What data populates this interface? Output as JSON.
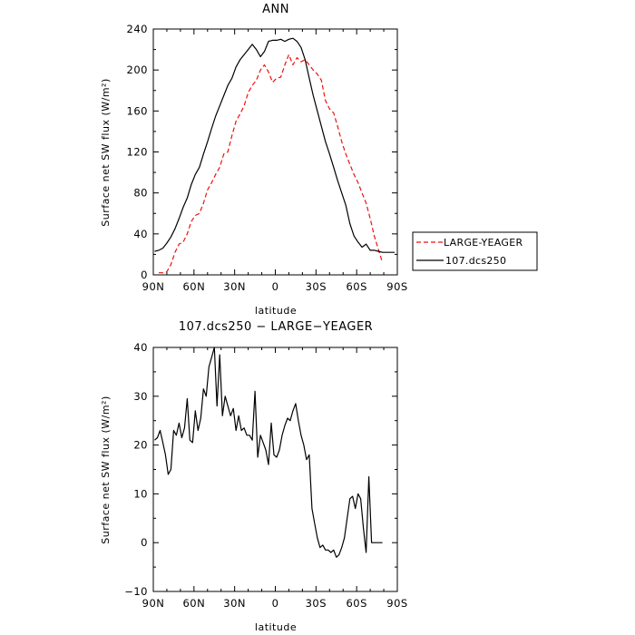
{
  "chart_data": [
    {
      "type": "line",
      "title": "ANN",
      "xlabel": "latitude",
      "ylabel": "Surface net SW flux (W/m²)",
      "xticks": [
        "90N",
        "60N",
        "30N",
        "0",
        "30S",
        "60S",
        "90S"
      ],
      "xtick_values": [
        90,
        60,
        30,
        0,
        -30,
        -60,
        -90
      ],
      "xlim": [
        90,
        -90
      ],
      "yticks": [
        "0",
        "40",
        "80",
        "120",
        "160",
        "200",
        "240"
      ],
      "ylim": [
        0,
        240
      ],
      "legend_position": "right",
      "series": [
        {
          "name": "LARGE-YEAGER",
          "color": "#ee1111",
          "style": "dashed",
          "x": [
            86,
            83,
            80,
            77,
            74,
            71,
            68,
            65,
            62,
            59,
            56,
            53,
            50,
            47,
            44,
            41,
            38,
            35,
            32,
            29,
            26,
            23,
            20,
            17,
            14,
            11,
            8,
            5,
            2,
            -1,
            -4,
            -7,
            -10,
            -13,
            -16,
            -19,
            -22,
            -25,
            -28,
            -31,
            -34,
            -37,
            -40,
            -43,
            -46,
            -49,
            -52,
            -55,
            -58,
            -61,
            -64,
            -67,
            -70,
            -73,
            -76,
            -79
          ],
          "y": [
            2,
            2,
            3,
            10,
            22,
            30,
            32,
            40,
            52,
            58,
            60,
            70,
            83,
            90,
            98,
            105,
            118,
            120,
            136,
            150,
            157,
            165,
            178,
            185,
            190,
            200,
            205,
            198,
            188,
            192,
            193,
            205,
            215,
            205,
            212,
            208,
            210,
            205,
            200,
            196,
            190,
            170,
            162,
            158,
            145,
            130,
            118,
            108,
            98,
            90,
            80,
            70,
            55,
            38,
            25,
            12
          ]
        },
        {
          "name": "107.dcs250",
          "color": "#000000",
          "style": "solid",
          "x": [
            89,
            86,
            83,
            80,
            77,
            74,
            71,
            68,
            65,
            62,
            59,
            56,
            53,
            50,
            47,
            44,
            41,
            38,
            35,
            32,
            29,
            26,
            23,
            20,
            17,
            14,
            11,
            8,
            5,
            2,
            -1,
            -4,
            -7,
            -10,
            -13,
            -16,
            -19,
            -22,
            -25,
            -28,
            -31,
            -34,
            -37,
            -40,
            -43,
            -46,
            -49,
            -52,
            -55,
            -58,
            -61,
            -64,
            -67,
            -70,
            -73,
            -76,
            -79,
            -82,
            -85,
            -88
          ],
          "y": [
            23,
            24,
            26,
            31,
            37,
            45,
            55,
            66,
            75,
            88,
            98,
            105,
            118,
            130,
            143,
            155,
            165,
            175,
            185,
            192,
            203,
            210,
            215,
            220,
            225,
            220,
            213,
            218,
            228,
            229,
            229,
            230,
            228,
            230,
            231,
            228,
            222,
            210,
            192,
            175,
            160,
            145,
            130,
            118,
            105,
            92,
            80,
            68,
            50,
            38,
            32,
            27,
            30,
            24,
            24,
            23,
            22,
            22,
            22,
            22
          ]
        }
      ]
    },
    {
      "type": "line",
      "title": "107.dcs250 − LARGE−YEAGER",
      "xlabel": "latitude",
      "ylabel": "Surface net SW flux (W/m²)",
      "xticks": [
        "90N",
        "60N",
        "30N",
        "0",
        "30S",
        "60S",
        "90S"
      ],
      "xtick_values": [
        90,
        60,
        30,
        0,
        -30,
        -60,
        -90
      ],
      "xlim": [
        90,
        -90
      ],
      "yticks": [
        "−10",
        "0",
        "10",
        "20",
        "30",
        "40"
      ],
      "ylim": [
        -10,
        40
      ],
      "series": [
        {
          "name": "",
          "color": "#000000",
          "style": "solid",
          "x": [
            89,
            87,
            85,
            83,
            81,
            79,
            77,
            75,
            73,
            71,
            69,
            67,
            65,
            63,
            61,
            59,
            57,
            55,
            53,
            51,
            49,
            47,
            45,
            43,
            41,
            39,
            37,
            35,
            33,
            31,
            29,
            27,
            25,
            23,
            21,
            19,
            17,
            15,
            13,
            11,
            9,
            7,
            5,
            3,
            1,
            -1,
            -3,
            -5,
            -7,
            -9,
            -11,
            -13,
            -15,
            -17,
            -19,
            -21,
            -23,
            -25,
            -27,
            -29,
            -31,
            -33,
            -35,
            -37,
            -39,
            -41,
            -43,
            -45,
            -47,
            -49,
            -51,
            -53,
            -55,
            -57,
            -59,
            -61,
            -63,
            -65,
            -67,
            -69,
            -71,
            -73,
            -75,
            -77,
            -79
          ],
          "y": [
            21,
            21.5,
            23,
            20.5,
            18,
            14,
            15,
            23,
            22,
            24.5,
            21.5,
            23.5,
            29.5,
            21,
            20.5,
            27,
            23,
            25.5,
            31.5,
            30,
            36,
            38,
            40,
            28,
            38.5,
            26,
            30,
            28,
            26,
            27.5,
            23,
            26,
            23,
            23.5,
            22,
            22,
            21,
            31,
            17.5,
            22,
            20.5,
            19,
            16,
            24.5,
            18,
            17.5,
            19,
            22,
            24,
            25.5,
            25,
            27,
            28.5,
            25,
            22,
            20,
            17,
            18,
            7,
            4,
            1,
            -1,
            -0.5,
            -1.5,
            -1.5,
            -2,
            -1.5,
            -3,
            -2.5,
            -1,
            1,
            5,
            9,
            9.5,
            7,
            10,
            9,
            3,
            -2,
            13.5,
            0,
            0,
            0,
            0,
            0
          ]
        }
      ]
    }
  ]
}
